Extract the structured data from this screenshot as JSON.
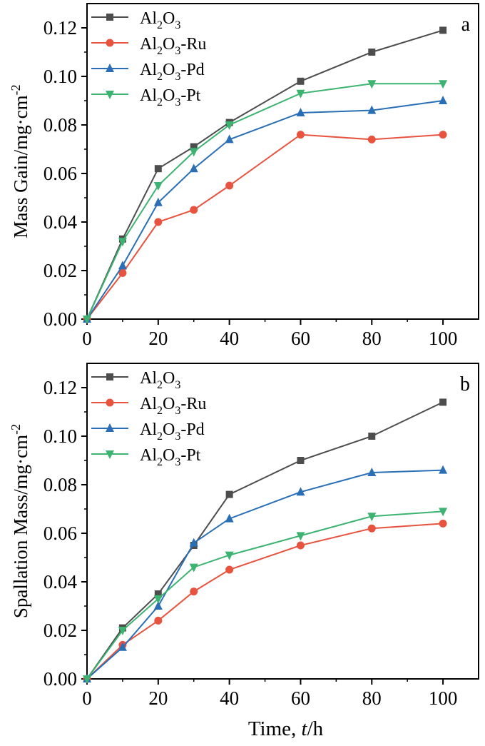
{
  "chart_data": [
    {
      "type": "line",
      "panel_label": "a",
      "title": "",
      "xlabel": "",
      "ylabel": "Mass Gain/mg·cm",
      "ylabel_sup": "-2",
      "xlim": [
        0,
        110
      ],
      "ylim": [
        0,
        0.13
      ],
      "xticks": [
        0,
        20,
        40,
        60,
        80,
        100
      ],
      "yticks": [
        0,
        0.02,
        0.04,
        0.06,
        0.08,
        0.1,
        0.12
      ],
      "ytick_labels": [
        "0.00",
        "0.02",
        "0.04",
        "0.06",
        "0.08",
        "0.10",
        "0.12"
      ],
      "legend_position": "top-left",
      "x": [
        0,
        10,
        20,
        30,
        40,
        60,
        80,
        100
      ],
      "series": [
        {
          "name": "Al2O3",
          "label_parts": [
            "Al",
            "2",
            "O",
            "3",
            ""
          ],
          "color": "#4d4d4d",
          "marker": "square",
          "values": [
            0,
            0.033,
            0.062,
            0.071,
            0.081,
            0.098,
            0.11,
            0.119
          ]
        },
        {
          "name": "Al2O3-Ru",
          "label_parts": [
            "Al",
            "2",
            "O",
            "3",
            "-Ru"
          ],
          "color": "#e8533f",
          "marker": "circle",
          "values": [
            0,
            0.019,
            0.04,
            0.045,
            0.055,
            0.076,
            0.074,
            0.076
          ]
        },
        {
          "name": "Al2O3-Pd",
          "label_parts": [
            "Al",
            "2",
            "O",
            "3",
            "-Pd"
          ],
          "color": "#2a6fb5",
          "marker": "triangle-up",
          "values": [
            0,
            0.022,
            0.048,
            0.062,
            0.074,
            0.085,
            0.086,
            0.09
          ]
        },
        {
          "name": "Al2O3-Pt",
          "label_parts": [
            "Al",
            "2",
            "O",
            "3",
            "-Pt"
          ],
          "color": "#3cb371",
          "marker": "triangle-down",
          "values": [
            0,
            0.032,
            0.055,
            0.069,
            0.08,
            0.093,
            0.097,
            0.097
          ]
        }
      ]
    },
    {
      "type": "line",
      "panel_label": "b",
      "title": "",
      "xlabel": "Time, ",
      "xlabel_italic": "t",
      "xlabel_suffix": "/h",
      "ylabel": "Spallation Mass/mg·cm",
      "ylabel_sup": "-2",
      "xlim": [
        0,
        110
      ],
      "ylim": [
        0,
        0.13
      ],
      "xticks": [
        0,
        20,
        40,
        60,
        80,
        100
      ],
      "yticks": [
        0,
        0.02,
        0.04,
        0.06,
        0.08,
        0.1,
        0.12
      ],
      "ytick_labels": [
        "0.00",
        "0.02",
        "0.04",
        "0.06",
        "0.08",
        "0.10",
        "0.12"
      ],
      "legend_position": "top-left",
      "x": [
        0,
        10,
        20,
        30,
        40,
        60,
        80,
        100
      ],
      "series": [
        {
          "name": "Al2O3",
          "label_parts": [
            "Al",
            "2",
            "O",
            "3",
            ""
          ],
          "color": "#4d4d4d",
          "marker": "square",
          "values": [
            0,
            0.021,
            0.035,
            0.055,
            0.076,
            0.09,
            0.1,
            0.114
          ]
        },
        {
          "name": "Al2O3-Ru",
          "label_parts": [
            "Al",
            "2",
            "O",
            "3",
            "-Ru"
          ],
          "color": "#e8533f",
          "marker": "circle",
          "values": [
            0,
            0.014,
            0.024,
            0.036,
            0.045,
            0.055,
            0.062,
            0.064
          ]
        },
        {
          "name": "Al2O3-Pd",
          "label_parts": [
            "Al",
            "2",
            "O",
            "3",
            "-Pd"
          ],
          "color": "#2a6fb5",
          "marker": "triangle-up",
          "values": [
            0,
            0.013,
            0.03,
            0.056,
            0.066,
            0.077,
            0.085,
            0.086
          ]
        },
        {
          "name": "Al2O3-Pt",
          "label_parts": [
            "Al",
            "2",
            "O",
            "3",
            "-Pt"
          ],
          "color": "#3cb371",
          "marker": "triangle-down",
          "values": [
            0,
            0.02,
            0.033,
            0.046,
            0.051,
            0.059,
            0.067,
            0.069
          ]
        }
      ]
    }
  ]
}
